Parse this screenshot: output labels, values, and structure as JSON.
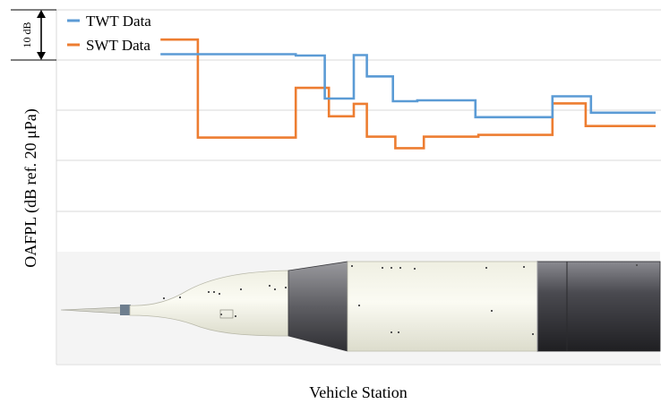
{
  "chart_data": {
    "type": "line",
    "step": true,
    "xlabel": "Vehicle Station",
    "ylabel": "OAFPL (dB ref. 20 μPa)",
    "x_tick_labels": [],
    "y_tick_labels": [],
    "grid": true,
    "legend_position": "top-left",
    "scale_bar_label": "10 dB",
    "ylim": [
      -30,
      50
    ],
    "xlim": [
      0,
      100
    ],
    "series": [
      {
        "name": "TWT Data",
        "color": "#5b9bd5",
        "points": [
          [
            16.5,
            40.0
          ],
          [
            39.3,
            40.0
          ],
          [
            39.3,
            39.7
          ],
          [
            44.2,
            39.7
          ],
          [
            44.2,
            30.0
          ],
          [
            49.1,
            30.0
          ],
          [
            49.1,
            39.8
          ],
          [
            51.3,
            39.8
          ],
          [
            51.3,
            35.0
          ],
          [
            55.7,
            35.0
          ],
          [
            55.7,
            29.4
          ],
          [
            59.8,
            29.4
          ],
          [
            59.8,
            29.6
          ],
          [
            69.6,
            29.6
          ],
          [
            69.6,
            25.8
          ],
          [
            82.6,
            25.8
          ],
          [
            82.6,
            30.5
          ],
          [
            89.1,
            30.5
          ],
          [
            89.1,
            26.8
          ],
          [
            100.0,
            26.8
          ]
        ]
      },
      {
        "name": "SWT Data",
        "color": "#ed7d31",
        "points": [
          [
            16.5,
            43.3
          ],
          [
            22.8,
            43.3
          ],
          [
            22.8,
            21.2
          ],
          [
            39.3,
            21.2
          ],
          [
            39.3,
            32.4
          ],
          [
            44.9,
            32.4
          ],
          [
            44.9,
            26.0
          ],
          [
            49.1,
            26.0
          ],
          [
            49.1,
            28.8
          ],
          [
            51.3,
            28.8
          ],
          [
            51.3,
            21.4
          ],
          [
            56.1,
            21.4
          ],
          [
            56.1,
            18.8
          ],
          [
            60.9,
            18.8
          ],
          [
            60.9,
            21.4
          ],
          [
            70.1,
            21.4
          ],
          [
            70.1,
            21.8
          ],
          [
            82.6,
            21.8
          ],
          [
            82.6,
            28.9
          ],
          [
            88.2,
            28.9
          ],
          [
            88.2,
            23.8
          ],
          [
            100.0,
            23.8
          ]
        ]
      }
    ]
  },
  "vehicle_figure": {
    "description_icon": "launch-vehicle-schematic"
  }
}
